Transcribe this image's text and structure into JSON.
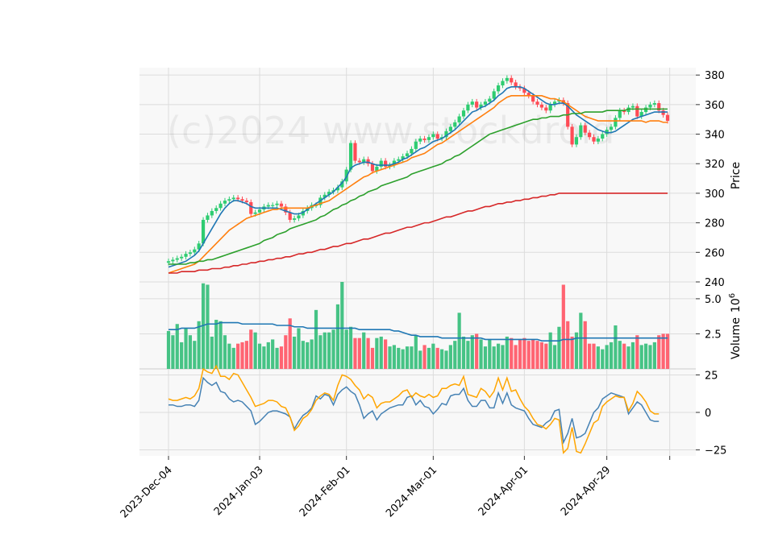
{
  "watermark": "(c)2024 www.stockdroid",
  "colors": {
    "up": "#2ecc71",
    "down": "#ff4b55",
    "vol_up": "#3cc07e",
    "vol_down": "#ff5c6a",
    "ma1": "#1f77b4",
    "ma2": "#ff7f0e",
    "ma3": "#2ca02c",
    "ma4": "#d62728",
    "vol_ma": "#1f77b4",
    "osc1": "#4682b4",
    "osc2": "#ffa500",
    "panel_bg": "#f8f8f8",
    "grid": "#dcdcdc"
  },
  "chart_data": [
    {
      "type": "candlestick",
      "ylabel": "Price",
      "ylim": [
        240,
        385
      ],
      "yticks": [
        "240",
        "260",
        "280",
        "300",
        "320",
        "340",
        "360",
        "380"
      ],
      "x_tick_labels": [
        "2023-Dec-04",
        "2024-Jan-03",
        "2024-Feb-01",
        "2024-Mar-01",
        "2024-Apr-01",
        "2024-Apr-29"
      ],
      "grid": true,
      "close": [
        254,
        255,
        256,
        257,
        259,
        260,
        262,
        266,
        282,
        285,
        288,
        290,
        293,
        295,
        296,
        297,
        296,
        295,
        294,
        286,
        287,
        289,
        291,
        292,
        292,
        293,
        291,
        287,
        282,
        283,
        285,
        288,
        290,
        292,
        292,
        297,
        299,
        301,
        302,
        304,
        308,
        316,
        334,
        322,
        321,
        323,
        320,
        315,
        318,
        322,
        318,
        319,
        322,
        323,
        325,
        327,
        330,
        335,
        337,
        336,
        338,
        340,
        337,
        338,
        342,
        345,
        348,
        352,
        356,
        360,
        362,
        358,
        360,
        362,
        364,
        369,
        373,
        376,
        378,
        375,
        372,
        371,
        368,
        366,
        362,
        360,
        358,
        356,
        360,
        362,
        363,
        361,
        345,
        333,
        338,
        346,
        341,
        338,
        335,
        337,
        340,
        343,
        345,
        351,
        356,
        355,
        358,
        359,
        352,
        355,
        358,
        360,
        361,
        356,
        353,
        349
      ],
      "series": [
        {
          "name": "",
          "values": [
            250,
            251,
            252,
            253,
            254,
            256,
            258,
            261,
            266,
            271,
            276,
            281,
            286,
            290,
            293,
            295,
            295,
            294,
            293,
            291,
            290,
            290,
            290,
            290,
            290,
            290,
            289,
            288,
            287,
            286,
            286,
            287,
            289,
            291,
            293,
            295,
            297,
            299,
            301,
            304,
            307,
            311,
            317,
            319,
            320,
            321,
            321,
            320,
            319,
            319,
            319,
            319,
            320,
            321,
            323,
            324,
            326,
            328,
            330,
            331,
            333,
            335,
            336,
            337,
            339,
            341,
            343,
            346,
            349,
            352,
            355,
            356,
            358,
            359,
            361,
            363,
            366,
            368,
            371,
            372,
            372,
            372,
            371,
            369,
            367,
            365,
            363,
            361,
            360,
            360,
            361,
            361,
            359,
            356,
            353,
            351,
            349,
            347,
            345,
            343,
            342,
            341,
            341,
            342,
            344,
            346,
            348,
            350,
            351,
            352,
            353,
            354,
            355,
            355,
            355,
            355
          ],
          "color": "ma1"
        },
        {
          "name": "",
          "values": [
            246,
            247,
            248,
            249,
            250,
            251,
            252,
            254,
            257,
            260,
            263,
            266,
            269,
            272,
            275,
            277,
            279,
            281,
            283,
            284,
            285,
            286,
            287,
            288,
            289,
            289,
            290,
            290,
            290,
            290,
            290,
            290,
            290,
            291,
            292,
            293,
            294,
            295,
            297,
            299,
            301,
            303,
            305,
            307,
            309,
            311,
            312,
            314,
            315,
            316,
            317,
            318,
            319,
            320,
            321,
            322,
            324,
            325,
            326,
            327,
            329,
            331,
            333,
            334,
            336,
            338,
            340,
            342,
            344,
            346,
            348,
            350,
            352,
            354,
            356,
            358,
            361,
            363,
            365,
            366,
            366,
            366,
            366,
            366,
            366,
            366,
            366,
            365,
            364,
            364,
            363,
            362,
            360,
            358,
            356,
            354,
            352,
            351,
            350,
            349,
            349,
            349,
            349,
            349,
            349,
            349,
            349,
            349,
            349,
            349,
            348,
            349,
            349,
            349,
            348,
            348
          ],
          "color": "ma2"
        },
        {
          "name": "",
          "values": [
            252,
            252,
            252,
            252,
            252,
            253,
            253,
            254,
            254,
            255,
            255,
            256,
            257,
            258,
            259,
            260,
            261,
            262,
            263,
            264,
            265,
            266,
            268,
            269,
            270,
            272,
            273,
            274,
            276,
            277,
            278,
            279,
            280,
            281,
            282,
            284,
            285,
            287,
            289,
            290,
            292,
            293,
            295,
            296,
            298,
            299,
            301,
            302,
            303,
            305,
            306,
            307,
            308,
            309,
            310,
            311,
            313,
            314,
            315,
            316,
            317,
            318,
            319,
            320,
            322,
            323,
            325,
            326,
            328,
            330,
            332,
            334,
            336,
            338,
            340,
            341,
            342,
            343,
            344,
            345,
            346,
            347,
            348,
            349,
            350,
            350,
            351,
            351,
            352,
            352,
            352,
            353,
            353,
            354,
            354,
            354,
            355,
            355,
            355,
            355,
            355,
            356,
            356,
            356,
            356,
            356,
            357,
            357,
            357,
            357,
            357,
            357,
            357,
            357,
            357,
            357
          ],
          "color": "ma3"
        },
        {
          "name": "",
          "values": [
            246,
            246,
            246,
            247,
            247,
            247,
            247,
            248,
            248,
            248,
            249,
            249,
            249,
            250,
            250,
            251,
            251,
            252,
            252,
            253,
            253,
            254,
            254,
            255,
            255,
            256,
            256,
            257,
            257,
            258,
            259,
            259,
            260,
            260,
            261,
            262,
            262,
            263,
            264,
            264,
            265,
            266,
            266,
            267,
            268,
            269,
            269,
            270,
            271,
            272,
            273,
            273,
            274,
            275,
            276,
            277,
            277,
            278,
            279,
            280,
            280,
            281,
            282,
            283,
            284,
            284,
            285,
            286,
            287,
            288,
            288,
            289,
            290,
            291,
            291,
            292,
            293,
            293,
            294,
            294,
            295,
            295,
            296,
            296,
            297,
            297,
            298,
            298,
            299,
            299,
            300,
            300,
            300,
            300,
            300,
            300,
            300,
            300,
            300,
            300,
            300,
            300,
            300,
            300,
            300,
            300,
            300,
            300,
            300,
            300,
            300,
            300,
            300,
            300,
            300,
            300
          ],
          "color": "ma4"
        }
      ]
    },
    {
      "type": "bar",
      "ylabel": "Volume",
      "ylabel_exp": "6",
      "ylim": [
        0,
        6.2
      ],
      "yticks": [
        "2.5",
        "5.0"
      ],
      "grid": true,
      "values": [
        2.7,
        2.4,
        3.2,
        1.9,
        2.9,
        2.4,
        2.0,
        3.4,
        6.1,
        6.0,
        2.3,
        3.5,
        3.4,
        2.4,
        1.8,
        1.5,
        1.8,
        1.9,
        2.0,
        2.8,
        2.6,
        1.8,
        1.6,
        1.9,
        2.1,
        1.5,
        1.6,
        2.4,
        3.6,
        2.3,
        2.9,
        2.0,
        1.9,
        2.1,
        4.2,
        2.4,
        2.6,
        2.6,
        2.8,
        4.6,
        6.2,
        2.8,
        3.0,
        2.2,
        2.2,
        2.6,
        2.2,
        1.5,
        2.2,
        2.3,
        2.1,
        1.6,
        1.7,
        1.5,
        1.4,
        1.6,
        1.6,
        2.4,
        1.3,
        1.7,
        1.5,
        1.8,
        1.5,
        1.4,
        1.3,
        1.7,
        2.0,
        4.0,
        2.3,
        2.0,
        2.4,
        2.5,
        2.1,
        1.6,
        2.1,
        1.6,
        1.8,
        1.7,
        2.3,
        2.2,
        1.7,
        2.1,
        2.2,
        2.0,
        2.1,
        2.0,
        1.9,
        1.8,
        2.6,
        1.7,
        3.0,
        6.0,
        3.4,
        2.3,
        2.6,
        4.0,
        3.4,
        1.8,
        1.8,
        1.6,
        1.4,
        1.7,
        1.9,
        3.1,
        2.0,
        1.8,
        1.6,
        1.9,
        2.4,
        1.7,
        1.8,
        1.7,
        1.9,
        2.4,
        2.5,
        2.5
      ],
      "series": [
        {
          "name": "",
          "values": [
            2.8,
            2.8,
            2.8,
            2.9,
            2.9,
            2.9,
            2.9,
            3.0,
            3.1,
            3.2,
            3.2,
            3.2,
            3.3,
            3.3,
            3.3,
            3.3,
            3.3,
            3.2,
            3.2,
            3.2,
            3.2,
            3.2,
            3.2,
            3.2,
            3.2,
            3.1,
            3.1,
            3.1,
            3.1,
            3.0,
            3.0,
            3.0,
            2.9,
            2.9,
            2.9,
            2.9,
            2.9,
            2.9,
            2.9,
            2.9,
            2.9,
            2.9,
            2.9,
            2.9,
            2.8,
            2.8,
            2.8,
            2.8,
            2.8,
            2.8,
            2.8,
            2.8,
            2.7,
            2.7,
            2.6,
            2.5,
            2.4,
            2.4,
            2.3,
            2.3,
            2.3,
            2.3,
            2.3,
            2.2,
            2.2,
            2.2,
            2.2,
            2.2,
            2.2,
            2.2,
            2.2,
            2.2,
            2.2,
            2.1,
            2.1,
            2.1,
            2.1,
            2.1,
            2.1,
            2.1,
            2.1,
            2.1,
            2.1,
            2.1,
            2.1,
            2.1,
            2.0,
            2.0,
            2.0,
            2.0,
            2.0,
            2.1,
            2.1,
            2.1,
            2.2,
            2.2,
            2.2,
            2.2,
            2.2,
            2.2,
            2.2,
            2.2,
            2.2,
            2.2,
            2.2,
            2.2,
            2.2,
            2.2,
            2.2,
            2.2,
            2.2,
            2.2,
            2.2,
            2.2,
            2.2,
            2.2
          ],
          "color": "vol_ma"
        }
      ]
    },
    {
      "type": "line",
      "ylim": [
        -29,
        29
      ],
      "yticks": [
        "25",
        "0",
        "−25"
      ],
      "grid": true,
      "series": [
        {
          "name": "",
          "values": [
            5,
            5,
            4,
            4,
            5,
            5,
            4,
            8,
            23,
            20,
            18,
            20,
            14,
            13,
            9,
            7,
            8,
            7,
            4,
            1,
            -8,
            -6,
            -3,
            0,
            1,
            1,
            0,
            -1,
            -3,
            -11,
            -6,
            -2,
            0,
            3,
            11,
            9,
            12,
            11,
            5,
            12,
            15,
            17,
            14,
            12,
            5,
            -4,
            -1,
            1,
            -5,
            -1,
            1,
            3,
            4,
            5,
            5,
            10,
            11,
            5,
            8,
            4,
            3,
            -1,
            2,
            6,
            5,
            11,
            12,
            12,
            16,
            8,
            4,
            4,
            8,
            8,
            3,
            3,
            13,
            6,
            13,
            5,
            3,
            2,
            1,
            -4,
            -8,
            -9,
            -10,
            -7,
            -5,
            1,
            2,
            -20,
            -14,
            -4,
            -17,
            -16,
            -14,
            -7,
            0,
            3,
            9,
            11,
            13,
            12,
            11,
            10,
            -1,
            3,
            7,
            5,
            0,
            -5,
            -6,
            -6
          ],
          "color": "osc1"
        },
        {
          "name": "",
          "values": [
            9,
            8,
            8,
            9,
            10,
            9,
            11,
            16,
            29,
            27,
            26,
            31,
            24,
            24,
            22,
            26,
            25,
            20,
            15,
            10,
            4,
            5,
            6,
            8,
            8,
            7,
            4,
            3,
            -3,
            -12,
            -9,
            -4,
            -2,
            2,
            8,
            11,
            13,
            12,
            8,
            18,
            25,
            24,
            22,
            18,
            15,
            9,
            12,
            10,
            3,
            6,
            7,
            7,
            9,
            11,
            14,
            15,
            10,
            13,
            11,
            10,
            12,
            10,
            11,
            16,
            16,
            18,
            19,
            18,
            24,
            12,
            11,
            10,
            16,
            14,
            10,
            14,
            23,
            15,
            23,
            14,
            15,
            9,
            4,
            1,
            -4,
            -8,
            -9,
            -11,
            -8,
            -4,
            -5,
            -27,
            -24,
            -10,
            -26,
            -27,
            -21,
            -14,
            -7,
            -5,
            4,
            7,
            9,
            11,
            10,
            10,
            1,
            6,
            14,
            11,
            7,
            1,
            -1,
            -1
          ],
          "color": "osc2"
        }
      ]
    }
  ]
}
